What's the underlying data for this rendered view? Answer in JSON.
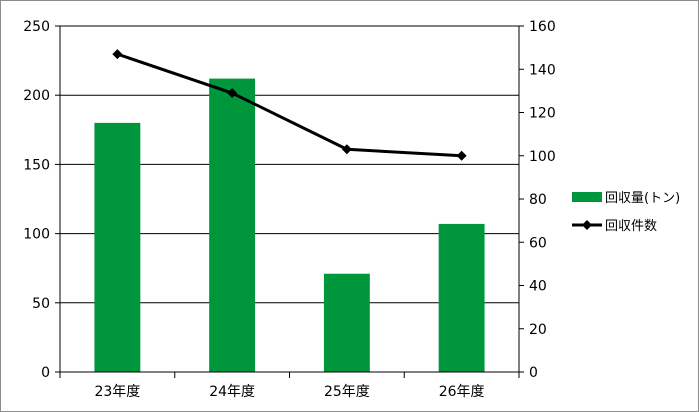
{
  "chart_data": {
    "type": "bar",
    "categories": [
      "23年度",
      "24年度",
      "25年度",
      "26年度"
    ],
    "series": [
      {
        "name": "回収量(トン)",
        "kind": "bar",
        "axis": "left",
        "color": "#00963c",
        "values": [
          180,
          212,
          71,
          107
        ]
      },
      {
        "name": "回収件数",
        "kind": "line",
        "axis": "right",
        "color": "#000000",
        "marker": "diamond",
        "values": [
          147,
          129,
          103,
          100
        ]
      }
    ],
    "left_axis": {
      "range": [
        0,
        250
      ],
      "ticks": [
        0,
        50,
        100,
        150,
        200,
        250
      ]
    },
    "right_axis": {
      "range": [
        0,
        160
      ],
      "ticks": [
        0,
        20,
        40,
        60,
        80,
        100,
        120,
        140,
        160
      ]
    },
    "grid": true,
    "legend_position": "right"
  }
}
